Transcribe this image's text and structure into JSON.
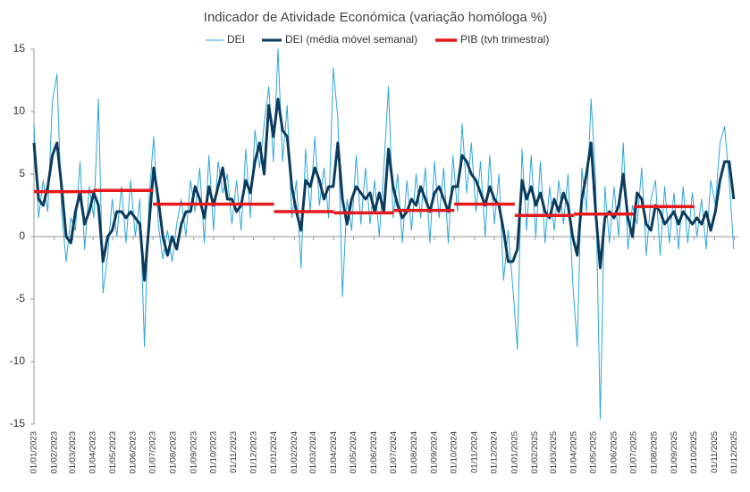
{
  "chart_data": {
    "type": "line",
    "title": "Indicador de Atividade Económica (variação homóloga %)",
    "x": [
      "2023-01-01",
      "2023-01-08",
      "2023-01-15",
      "2023-01-22",
      "2023-01-29",
      "2023-02-05",
      "2023-02-12",
      "2023-02-19",
      "2023-02-26",
      "2023-03-05",
      "2023-03-12",
      "2023-03-19",
      "2023-03-26",
      "2023-04-02",
      "2023-04-09",
      "2023-04-16",
      "2023-04-23",
      "2023-04-30",
      "2023-05-07",
      "2023-05-14",
      "2023-05-21",
      "2023-05-28",
      "2023-06-04",
      "2023-06-11",
      "2023-06-18",
      "2023-06-25",
      "2023-07-02",
      "2023-07-09",
      "2023-07-16",
      "2023-07-23",
      "2023-07-30",
      "2023-08-06",
      "2023-08-13",
      "2023-08-20",
      "2023-08-27",
      "2023-09-03",
      "2023-09-10",
      "2023-09-17",
      "2023-09-24",
      "2023-10-01",
      "2023-10-08",
      "2023-10-15",
      "2023-10-22",
      "2023-10-29",
      "2023-11-05",
      "2023-11-12",
      "2023-11-19",
      "2023-11-26",
      "2023-12-03",
      "2023-12-10",
      "2023-12-17",
      "2023-12-24",
      "2023-12-31",
      "2024-01-07",
      "2024-01-14",
      "2024-01-21",
      "2024-01-28",
      "2024-02-04",
      "2024-02-11",
      "2024-02-18",
      "2024-02-25",
      "2024-03-03",
      "2024-03-10",
      "2024-03-17",
      "2024-03-24",
      "2024-03-31",
      "2024-04-07",
      "2024-04-14",
      "2024-04-21",
      "2024-04-28",
      "2024-05-05",
      "2024-05-12",
      "2024-05-19",
      "2024-05-26",
      "2024-06-02",
      "2024-06-09",
      "2024-06-16",
      "2024-06-23",
      "2024-06-30",
      "2024-07-07",
      "2024-07-14",
      "2024-07-21",
      "2024-07-28",
      "2024-08-04",
      "2024-08-11",
      "2024-08-18",
      "2024-08-25",
      "2024-09-01",
      "2024-09-08",
      "2024-09-15",
      "2024-09-22",
      "2024-09-29",
      "2024-10-06",
      "2024-10-13",
      "2024-10-20",
      "2024-10-27",
      "2024-11-03",
      "2024-11-10",
      "2024-11-17",
      "2024-11-24",
      "2024-12-01",
      "2024-12-08",
      "2024-12-15",
      "2024-12-22",
      "2024-12-29",
      "2025-01-05",
      "2025-01-12",
      "2025-01-19",
      "2025-01-26",
      "2025-02-02",
      "2025-02-09",
      "2025-02-16",
      "2025-02-23",
      "2025-03-02",
      "2025-03-09",
      "2025-03-16",
      "2025-03-23",
      "2025-03-30",
      "2025-04-06",
      "2025-04-13",
      "2025-04-20",
      "2025-04-27",
      "2025-05-04",
      "2025-05-11",
      "2025-05-18",
      "2025-05-25",
      "2025-06-01",
      "2025-06-08",
      "2025-06-15",
      "2025-06-22",
      "2025-06-29",
      "2025-07-06",
      "2025-07-13",
      "2025-07-20",
      "2025-07-27",
      "2025-08-03",
      "2025-08-10",
      "2025-08-17",
      "2025-08-24",
      "2025-08-31",
      "2025-09-07",
      "2025-09-14",
      "2025-09-21",
      "2025-09-28",
      "2025-10-05",
      "2025-10-12",
      "2025-10-19",
      "2025-10-26",
      "2025-11-02",
      "2025-11-09",
      "2025-11-16",
      "2025-11-23",
      "2025-11-30"
    ],
    "series": [
      {
        "name": "DEI",
        "color": "#2ea6d8",
        "width": 1,
        "values": [
          9.0,
          1.5,
          4.5,
          2.0,
          10.8,
          13.0,
          2.0,
          -2.0,
          1.5,
          0.5,
          6.0,
          -1.0,
          4.0,
          1.5,
          11.0,
          -4.5,
          -1.5,
          3.0,
          0.0,
          4.0,
          -0.5,
          4.5,
          0.0,
          3.0,
          -8.8,
          3.0,
          8.0,
          1.0,
          -1.8,
          0.5,
          -2.0,
          1.0,
          3.0,
          0.0,
          4.5,
          2.0,
          5.5,
          -0.5,
          6.5,
          0.5,
          6.0,
          3.5,
          5.0,
          1.0,
          4.5,
          0.5,
          7.0,
          1.5,
          8.5,
          5.5,
          9.0,
          12.0,
          6.0,
          15.0,
          6.0,
          10.5,
          1.5,
          4.5,
          -2.5,
          7.0,
          2.0,
          8.0,
          2.5,
          5.5,
          1.5,
          13.5,
          9.5,
          -4.8,
          3.0,
          0.5,
          6.5,
          1.0,
          5.5,
          1.0,
          4.5,
          0.0,
          5.5,
          12.0,
          1.5,
          5.0,
          -0.5,
          4.5,
          0.5,
          5.0,
          1.5,
          5.5,
          -0.5,
          6.0,
          1.5,
          5.5,
          -0.5,
          6.5,
          2.0,
          9.0,
          3.5,
          7.5,
          2.0,
          6.0,
          0.0,
          6.5,
          1.0,
          5.0,
          -3.5,
          0.5,
          -4.0,
          -9.0,
          7.0,
          0.5,
          6.5,
          0.0,
          6.0,
          -0.5,
          4.0,
          0.5,
          4.5,
          1.0,
          5.0,
          -3.5,
          -8.8,
          5.5,
          2.0,
          11.0,
          4.5,
          -14.6,
          4.0,
          -0.5,
          4.0,
          0.0,
          7.5,
          -1.0,
          2.5,
          1.0,
          5.5,
          -1.5,
          3.0,
          4.5,
          -1.5,
          4.0,
          -0.5,
          3.5,
          -1.0,
          4.0,
          -0.5,
          3.5,
          0.0,
          3.0,
          -1.0,
          4.5,
          2.5,
          7.5,
          8.8,
          4.5,
          -1.0
        ]
      },
      {
        "name": "DEI (média móvel semanal)",
        "color": "#0b3b5c",
        "width": 3,
        "values": [
          7.5,
          3.0,
          2.5,
          4.0,
          6.5,
          7.5,
          4.0,
          0.0,
          -0.5,
          2.0,
          3.5,
          1.0,
          2.0,
          3.5,
          2.5,
          -2.0,
          0.0,
          0.5,
          2.0,
          2.0,
          1.5,
          2.0,
          1.5,
          1.0,
          -3.5,
          1.0,
          5.5,
          3.0,
          0.0,
          -1.5,
          0.0,
          -1.0,
          1.0,
          2.0,
          2.0,
          4.0,
          3.0,
          1.5,
          4.0,
          2.5,
          4.0,
          5.5,
          3.0,
          3.0,
          2.0,
          2.5,
          4.5,
          3.5,
          6.0,
          7.5,
          5.0,
          10.5,
          8.0,
          11.0,
          8.5,
          8.0,
          4.0,
          2.0,
          0.5,
          4.5,
          4.0,
          5.5,
          4.5,
          3.0,
          4.0,
          4.0,
          7.5,
          3.0,
          1.0,
          3.0,
          4.0,
          3.5,
          3.0,
          3.5,
          2.0,
          3.5,
          2.0,
          7.0,
          4.0,
          2.5,
          1.5,
          2.0,
          3.0,
          2.5,
          4.0,
          3.0,
          2.0,
          3.5,
          4.0,
          3.0,
          2.0,
          4.0,
          4.0,
          6.5,
          6.0,
          5.0,
          4.5,
          3.5,
          2.5,
          4.0,
          3.0,
          2.5,
          0.5,
          -2.0,
          -2.0,
          -1.0,
          4.5,
          3.0,
          4.0,
          2.5,
          3.5,
          2.0,
          1.5,
          3.0,
          2.0,
          3.5,
          2.5,
          0.0,
          -1.5,
          3.0,
          5.0,
          7.5,
          2.0,
          -2.5,
          1.5,
          2.0,
          1.5,
          2.5,
          5.0,
          1.5,
          0.0,
          3.5,
          3.0,
          1.0,
          0.5,
          2.5,
          2.0,
          1.0,
          1.5,
          2.0,
          1.0,
          2.0,
          1.5,
          1.0,
          1.5,
          1.0,
          2.0,
          0.5,
          2.0,
          4.5,
          6.0,
          6.0,
          3.0
        ]
      },
      {
        "name": "PIB (tvh trimestral)",
        "color": "#e41a1c",
        "width": 3.5,
        "type": "step",
        "x": [
          "2023-01-01",
          "2023-04-01",
          "2023-07-01",
          "2023-10-01",
          "2024-01-01",
          "2024-04-01",
          "2024-07-01",
          "2024-10-01",
          "2025-01-01",
          "2025-04-01",
          "2025-07-01"
        ],
        "values": [
          3.6,
          3.7,
          2.6,
          2.6,
          2.0,
          1.9,
          2.1,
          2.6,
          1.7,
          1.8,
          2.4
        ]
      }
    ],
    "xlim": [
      "2023-01-01",
      "2025-12-07"
    ],
    "xticks": [
      {
        "value": "2023-01-01",
        "label": "01/01/2023"
      },
      {
        "value": "2023-02-01",
        "label": "01/02/2023"
      },
      {
        "value": "2023-03-01",
        "label": "01/03/2023"
      },
      {
        "value": "2023-04-01",
        "label": "01/04/2023"
      },
      {
        "value": "2023-05-01",
        "label": "01/05/2023"
      },
      {
        "value": "2023-06-01",
        "label": "01/06/2023"
      },
      {
        "value": "2023-07-01",
        "label": "01/07/2023"
      },
      {
        "value": "2023-08-01",
        "label": "01/08/2023"
      },
      {
        "value": "2023-09-01",
        "label": "01/09/2023"
      },
      {
        "value": "2023-10-01",
        "label": "01/10/2023"
      },
      {
        "value": "2023-11-01",
        "label": "01/11/2023"
      },
      {
        "value": "2023-12-01",
        "label": "01/12/2023"
      },
      {
        "value": "2024-01-01",
        "label": "01/01/2024"
      },
      {
        "value": "2024-02-01",
        "label": "01/02/2024"
      },
      {
        "value": "2024-03-01",
        "label": "01/03/2024"
      },
      {
        "value": "2024-04-01",
        "label": "01/04/2024"
      },
      {
        "value": "2024-05-01",
        "label": "01/05/2024"
      },
      {
        "value": "2024-06-01",
        "label": "01/06/2024"
      },
      {
        "value": "2024-07-01",
        "label": "01/07/2024"
      },
      {
        "value": "2024-08-01",
        "label": "01/08/2024"
      },
      {
        "value": "2024-09-01",
        "label": "01/09/2024"
      },
      {
        "value": "2024-10-01",
        "label": "01/10/2024"
      },
      {
        "value": "2024-11-01",
        "label": "01/11/2024"
      },
      {
        "value": "2024-12-01",
        "label": "01/12/2024"
      },
      {
        "value": "2025-01-01",
        "label": "01/01/2025"
      },
      {
        "value": "2025-02-01",
        "label": "01/02/2025"
      },
      {
        "value": "2025-03-01",
        "label": "01/03/2025"
      },
      {
        "value": "2025-04-01",
        "label": "01/04/2025"
      },
      {
        "value": "2025-05-01",
        "label": "01/05/2025"
      },
      {
        "value": "2025-06-01",
        "label": "01/06/2025"
      },
      {
        "value": "2025-07-01",
        "label": "01/07/2025"
      },
      {
        "value": "2025-08-01",
        "label": "01/08/2025"
      },
      {
        "value": "2025-09-01",
        "label": "01/09/2025"
      },
      {
        "value": "2025-10-01",
        "label": "01/10/2025"
      },
      {
        "value": "2025-11-01",
        "label": "01/11/2025"
      },
      {
        "value": "2025-12-01",
        "label": "01/12/2025"
      }
    ],
    "ylim": [
      -15,
      15
    ],
    "yticks": [
      -15,
      -10,
      -5,
      0,
      5,
      10,
      15
    ],
    "grid": false,
    "legend": "top"
  }
}
